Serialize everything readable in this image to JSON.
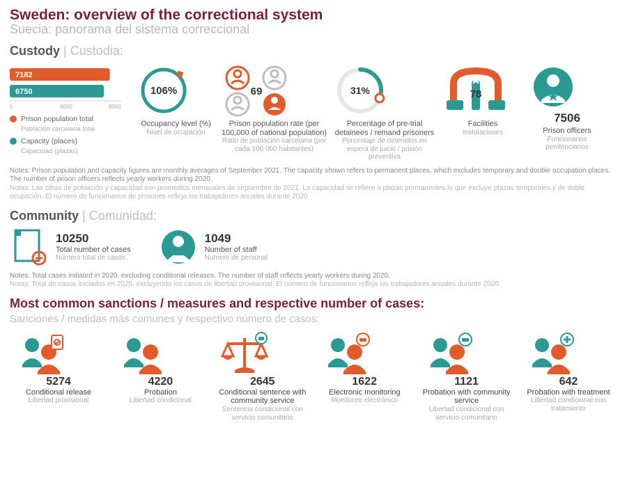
{
  "colors": {
    "orange": "#e25b2c",
    "teal": "#2b9a93",
    "grey": "#bdbdbd",
    "dark": "#555",
    "title": "#7a1d3d",
    "lightgrey": "#e6e6e6"
  },
  "title_en": "Sweden: overview of the correctional system",
  "title_es": "Suecia: panorama del sistema correccional",
  "custody_head_en": "Custody",
  "custody_head_es": "Custodia:",
  "bars": {
    "pop": 7182,
    "cap": 6750,
    "ticks": [
      "0",
      "4000",
      "8000"
    ],
    "max": 8000
  },
  "legend_pop_en": "Prison population total",
  "legend_pop_es": "Población carcelaria total",
  "legend_cap_en": "Capacity (places)",
  "legend_cap_es": "Capacidad (plazas)",
  "occupancy": {
    "value": "106%",
    "pct": 100,
    "lbl_en": "Occupancy level (%)",
    "lbl_es": "Nivel de ocupación"
  },
  "rate": {
    "value": "69",
    "lbl_en": "Prison population rate (per 100,000 of national population)",
    "lbl_es": "Ratio de población carcelaria (por cada 100 000 habitantes)"
  },
  "pretrial": {
    "value": "31%",
    "pct": 31,
    "lbl_en": "Percentage of pre-trial detainees / remand prisoners",
    "lbl_es": "Porcentaje de detenidos en espera de juicio / prisión preventiva"
  },
  "facilities": {
    "value": "78",
    "lbl_en": "Facilities",
    "lbl_es": "Instalaciones"
  },
  "officers": {
    "value": "7506",
    "lbl_en": "Prison officers",
    "lbl_es": "Funcionarios penitenciarios"
  },
  "notes_custody_en": "Notes: Prison population and capacity figures are monthly averages of September 2021. The capacity shown refers to permanent places, which excludes temporary and double occupation places. The number of prison officers reflects yearly workers during 2020.",
  "notes_custody_es": "Notas: Las cifras de población y capacidad son promedios mensuales de septiembre de 2021.  La capacidad se refiere a plazas permanentes lo que excluye plazas temporales y de doble ocupación. El número de funcionarios de prisiones refleja los trabajadores anuales durante 2020.",
  "community_head_en": "Community",
  "community_head_es": "Comunidad:",
  "community_cases": {
    "value": "10250",
    "lbl_en": "Total number of cases",
    "lbl_es": "Número total de casos"
  },
  "community_staff": {
    "value": "1049",
    "lbl_en": "Number of staff",
    "lbl_es": "Número de personal"
  },
  "notes_community_en": "Notes: Total cases initiated in 2020, excluding conditional releases. The number of staff reflects yearly workers during 2020.",
  "notes_community_es": "Notas: Total de casos iniciados en 2020, excluyendo los casos de libertad provisional. El número de funcionarios refleja los trabajadores anuales durante 2020.",
  "sanctions_head_en": "Most common sanctions / measures and respective number of cases:",
  "sanctions_head_es": "Sanciones / medidas más comunes y respectivo número de casos:",
  "sanctions": [
    {
      "value": "5274",
      "en": "Conditional release",
      "es": "Libertad provisional"
    },
    {
      "value": "4220",
      "en": "Probation",
      "es": "Libertad condicional"
    },
    {
      "value": "2645",
      "en": "Conditional sentence with community service",
      "es": "Sentencia condicional con servicio comunitario"
    },
    {
      "value": "1622",
      "en": "Electronic monitoring",
      "es": "Monitoreo electrónico"
    },
    {
      "value": "1121",
      "en": "Probation with community service",
      "es": "Libertad condicional con servicio comunitario"
    },
    {
      "value": "642",
      "en": "Probation with treatment",
      "es": "Libertad condicional con tratamiento"
    }
  ]
}
